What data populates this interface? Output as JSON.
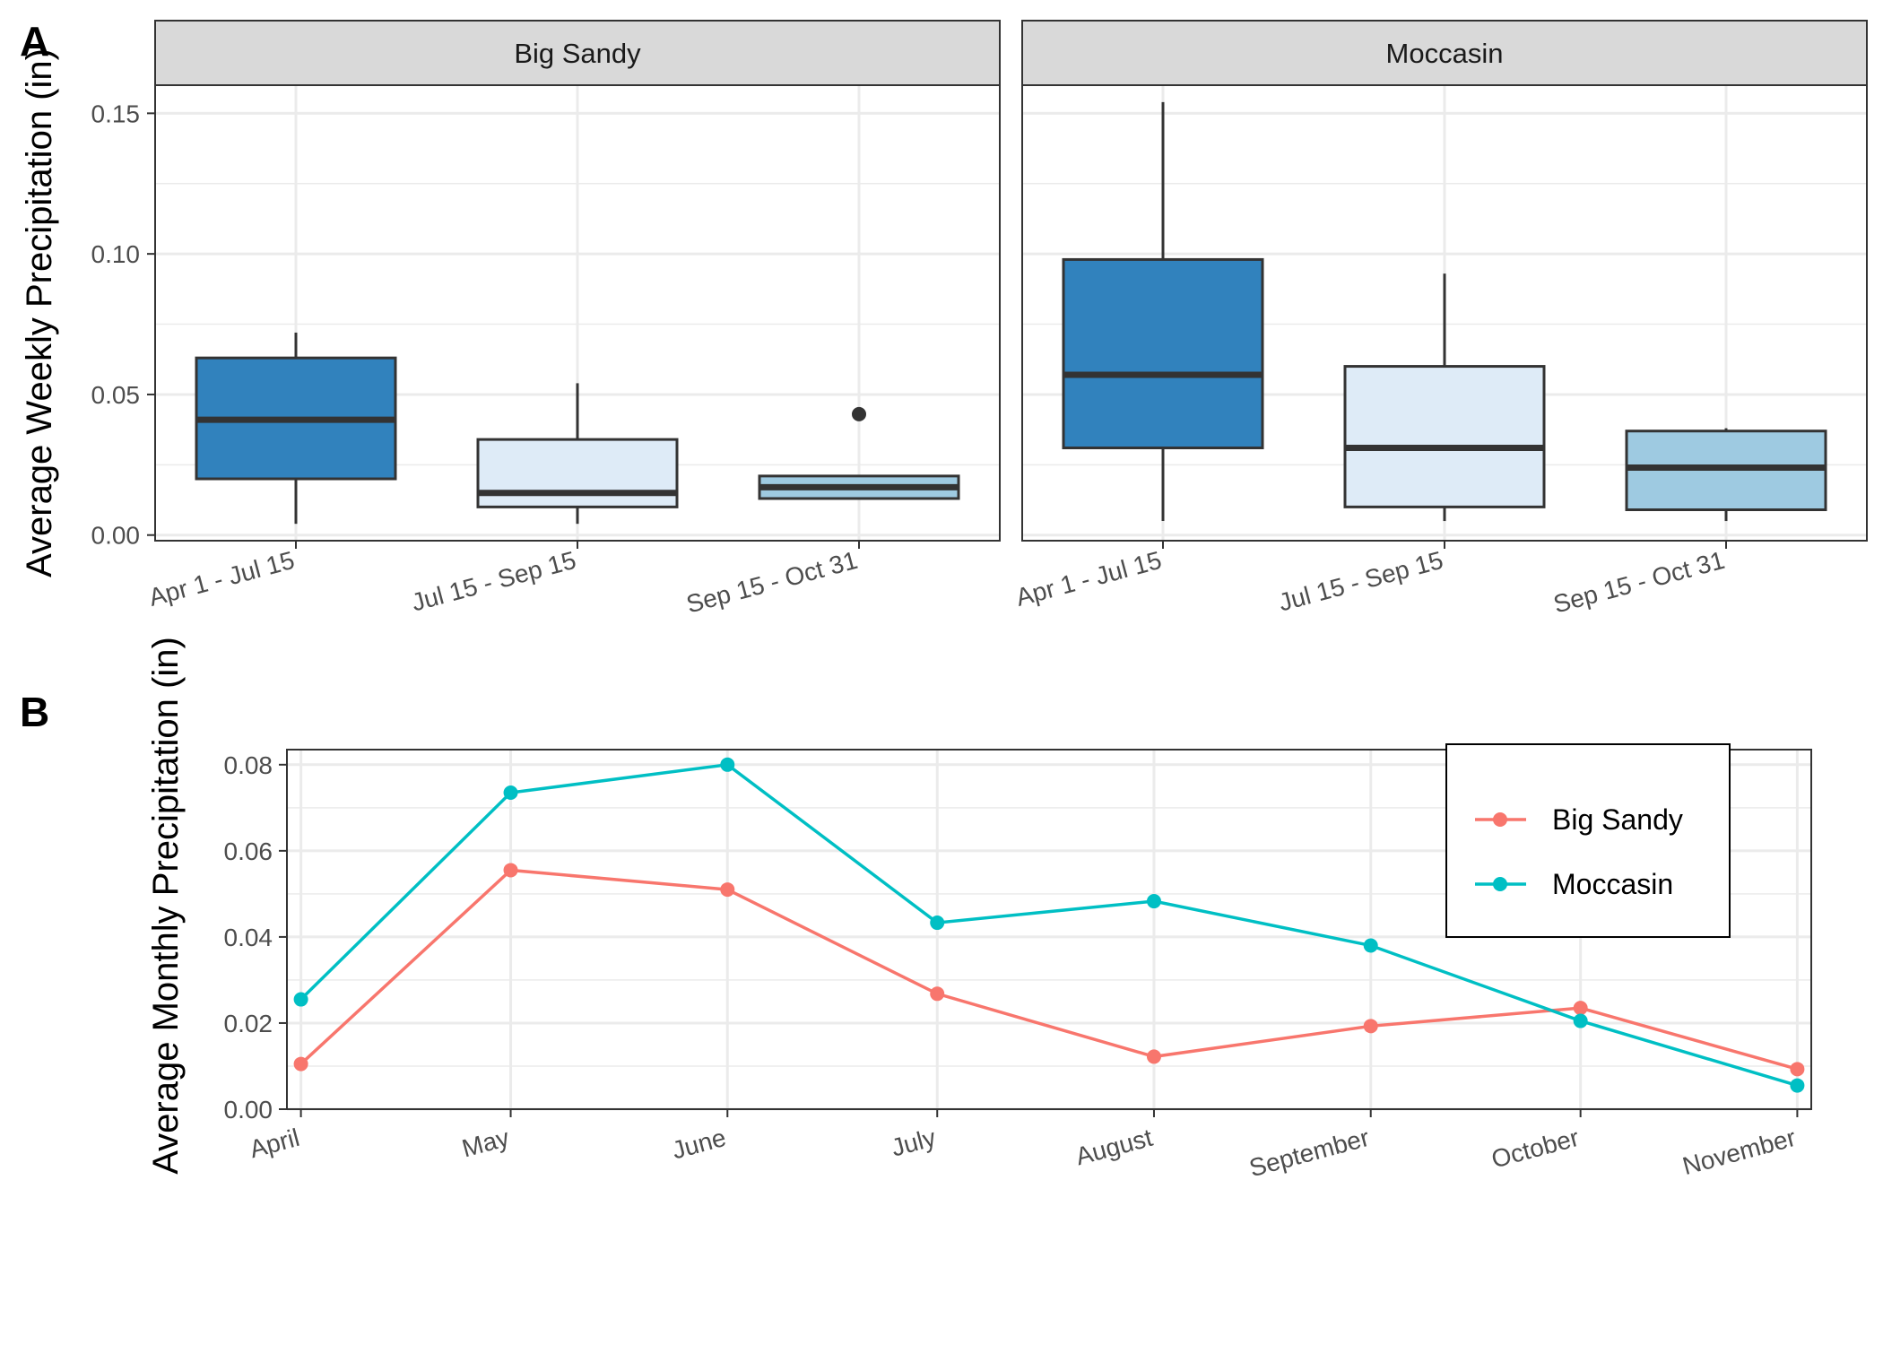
{
  "colors": {
    "box_dark": "#3182bd",
    "box_light": "#deebf7",
    "box_mid": "#9ecae1",
    "box_outline": "#333333",
    "grid": "#ebebeb",
    "strip_bg": "#d9d9d9",
    "big_sandy": "#f8766d",
    "moccasin": "#00bfc4"
  },
  "chart_data": [
    {
      "type": "boxplot",
      "panel_label": "A",
      "ylabel": "Average Weekly Precipitation (in)",
      "ylim": [
        -0.002,
        0.16
      ],
      "yticks": [
        0.0,
        0.05,
        0.1,
        0.15
      ],
      "ytick_labels": [
        "0.00",
        "0.05",
        "0.10",
        "0.15"
      ],
      "categories": [
        "Apr 1 - Jul 15",
        "Jul 15 - Sep 15",
        "Sep 15 - Oct 31"
      ],
      "grid": true,
      "facets": [
        {
          "name": "Big Sandy",
          "boxes": [
            {
              "category": "Apr 1 - Jul 15",
              "whisker_low": 0.004,
              "q1": 0.02,
              "median": 0.041,
              "q3": 0.063,
              "whisker_high": 0.072,
              "fill": "#3182bd",
              "outliers": []
            },
            {
              "category": "Jul 15 - Sep 15",
              "whisker_low": 0.004,
              "q1": 0.01,
              "median": 0.015,
              "q3": 0.034,
              "whisker_high": 0.054,
              "fill": "#deebf7",
              "outliers": []
            },
            {
              "category": "Sep 15 - Oct 31",
              "whisker_low": 0.013,
              "q1": 0.013,
              "median": 0.017,
              "q3": 0.021,
              "whisker_high": 0.021,
              "fill": "#9ecae1",
              "outliers": [
                0.043
              ]
            }
          ]
        },
        {
          "name": "Moccasin",
          "boxes": [
            {
              "category": "Apr 1 - Jul 15",
              "whisker_low": 0.005,
              "q1": 0.031,
              "median": 0.057,
              "q3": 0.098,
              "whisker_high": 0.154,
              "fill": "#3182bd",
              "outliers": []
            },
            {
              "category": "Jul 15 - Sep 15",
              "whisker_low": 0.005,
              "q1": 0.01,
              "median": 0.031,
              "q3": 0.06,
              "whisker_high": 0.093,
              "fill": "#deebf7",
              "outliers": []
            },
            {
              "category": "Sep 15 - Oct 31",
              "whisker_low": 0.005,
              "q1": 0.009,
              "median": 0.024,
              "q3": 0.037,
              "whisker_high": 0.038,
              "fill": "#9ecae1",
              "outliers": []
            }
          ]
        }
      ]
    },
    {
      "type": "line",
      "panel_label": "B",
      "ylabel": "Average Monthly Precipitation (in)",
      "ylim": [
        0,
        0.0835
      ],
      "yticks": [
        0.0,
        0.02,
        0.04,
        0.06,
        0.08
      ],
      "ytick_labels": [
        "0.00",
        "0.02",
        "0.04",
        "0.06",
        "0.08"
      ],
      "categories": [
        "April",
        "May",
        "June",
        "July",
        "August",
        "September",
        "October",
        "November"
      ],
      "x_day_positions": [
        0,
        30,
        61,
        91,
        122,
        153,
        183,
        214
      ],
      "grid": true,
      "legend_position": "top-right",
      "series": [
        {
          "name": "Big Sandy",
          "color": "#f8766d",
          "values": [
            0.0105,
            0.0555,
            0.051,
            0.0268,
            0.0122,
            0.0193,
            0.0235,
            0.0093
          ]
        },
        {
          "name": "Moccasin",
          "color": "#00bfc4",
          "values": [
            0.0255,
            0.0735,
            0.08,
            0.0433,
            0.0483,
            0.038,
            0.0205,
            0.0055
          ]
        }
      ]
    }
  ]
}
